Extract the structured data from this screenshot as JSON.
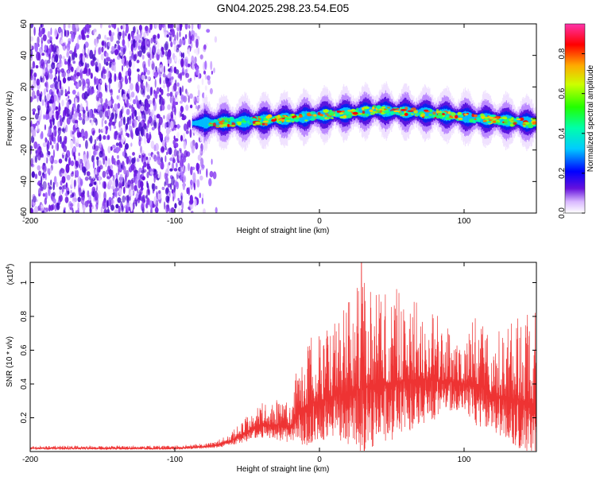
{
  "title": "GN04.2025.298.23.54.E05",
  "colors": {
    "snr_line": "#ee3333",
    "spectrogram_low": "#6611dd",
    "spectrogram_high": "#ff0000"
  },
  "chart_data": [
    {
      "type": "heatmap",
      "title": "GN04.2025.298.23.54.E05",
      "xlabel": "Height of straight line (km)",
      "ylabel": "Frequency (Hz)",
      "xlim": [
        -200,
        150
      ],
      "ylim": [
        -60,
        60
      ],
      "x_ticks": [
        -200,
        -100,
        0,
        100
      ],
      "x_tick_labels": [
        "-200",
        "-100",
        "0",
        "100"
      ],
      "y_ticks": [
        -60,
        -40,
        -20,
        0,
        20,
        40,
        60
      ],
      "y_tick_labels": [
        "-60",
        "-40",
        "-20",
        "0",
        "20",
        "40",
        "60"
      ],
      "colorbar": {
        "label": "Normalized spectral amplitude",
        "range": [
          0,
          0.95
        ],
        "ticks": [
          0.0,
          0.2,
          0.4,
          0.6,
          0.8
        ],
        "tick_labels": [
          "0.0",
          "0.2",
          "0.4",
          "0.6",
          "0.8"
        ]
      },
      "regions": [
        {
          "name": "broadband noise",
          "x_range": [
            -200,
            -70
          ],
          "freq_range": [
            -60,
            60
          ],
          "amplitude": 0.1
        },
        {
          "name": "signal band",
          "x_range": [
            -88,
            150
          ],
          "freq_center": [
            [
              -88,
              -3
            ],
            [
              -50,
              -2
            ],
            [
              -20,
              0
            ],
            [
              0,
              2
            ],
            [
              40,
              5
            ],
            [
              80,
              3
            ],
            [
              110,
              0
            ],
            [
              150,
              -3
            ]
          ],
          "half_width_hz": 5,
          "peak_amplitude": 0.95
        }
      ]
    },
    {
      "type": "line",
      "xlabel": "Height of straight line (km)",
      "ylabel": "SNR (10 * v/v)",
      "y_scale_label": "(x10",
      "y_scale_exp": "4",
      "y_scale_close": ")",
      "xlim": [
        -200,
        150
      ],
      "ylim": [
        0,
        1.12
      ],
      "x_ticks": [
        -200,
        -100,
        0,
        100
      ],
      "x_tick_labels": [
        "-200",
        "-100",
        "0",
        "100"
      ],
      "y_ticks": [
        0.2,
        0.4,
        0.6,
        0.8,
        1.0
      ],
      "y_tick_labels": [
        "0.2",
        "0.4",
        "0.6",
        "0.8",
        "1"
      ],
      "envelope": {
        "x": [
          -200,
          -140,
          -100,
          -80,
          -70,
          -60,
          -50,
          -40,
          -30,
          -20,
          -15,
          -10,
          0,
          10,
          20,
          30,
          40,
          50,
          60,
          70,
          80,
          90,
          100,
          110,
          120,
          130,
          140,
          150
        ],
        "base": [
          0.02,
          0.02,
          0.02,
          0.03,
          0.04,
          0.07,
          0.12,
          0.16,
          0.16,
          0.14,
          0.22,
          0.27,
          0.3,
          0.33,
          0.35,
          0.38,
          0.4,
          0.41,
          0.42,
          0.43,
          0.42,
          0.42,
          0.4,
          0.4,
          0.33,
          0.32,
          0.3,
          0.28
        ],
        "amp": [
          0.015,
          0.015,
          0.015,
          0.02,
          0.03,
          0.05,
          0.1,
          0.13,
          0.15,
          0.15,
          0.3,
          0.4,
          0.4,
          0.42,
          0.55,
          0.7,
          0.6,
          0.58,
          0.52,
          0.45,
          0.4,
          0.3,
          0.25,
          0.45,
          0.35,
          0.45,
          0.5,
          0.55
        ]
      },
      "samples": 2600,
      "peak": {
        "x": 29,
        "y": 1.12
      }
    }
  ]
}
